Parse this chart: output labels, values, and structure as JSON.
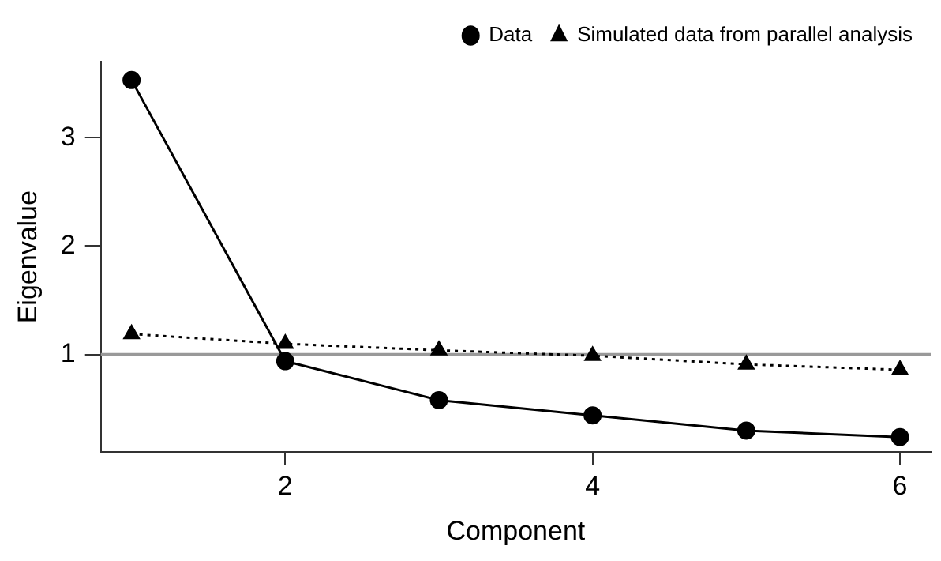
{
  "chart_data": {
    "type": "line",
    "xlabel": "Component",
    "ylabel": "Eigenvalue",
    "x": [
      1,
      2,
      3,
      4,
      5,
      6
    ],
    "series": [
      {
        "name": "Data",
        "color": "#000000",
        "marker": "circle",
        "line_style": "solid",
        "values": [
          3.53,
          0.94,
          0.58,
          0.44,
          0.3,
          0.24
        ]
      },
      {
        "name": "Simulated data from parallel analysis",
        "color": "#000000",
        "marker": "triangle",
        "line_style": "dotted",
        "values": [
          1.19,
          1.1,
          1.04,
          0.99,
          0.91,
          0.86
        ]
      }
    ],
    "xlim": [
      0.8,
      6.2
    ],
    "xticks": [
      2,
      4,
      6
    ],
    "ylim": [
      0.1,
      3.7
    ],
    "yticks": [
      1,
      2,
      3
    ],
    "ref_lines": [
      {
        "axis": "y",
        "value": 1,
        "color": "#999999",
        "line_style": "solid"
      }
    ],
    "grid": false,
    "legend": "top right"
  }
}
